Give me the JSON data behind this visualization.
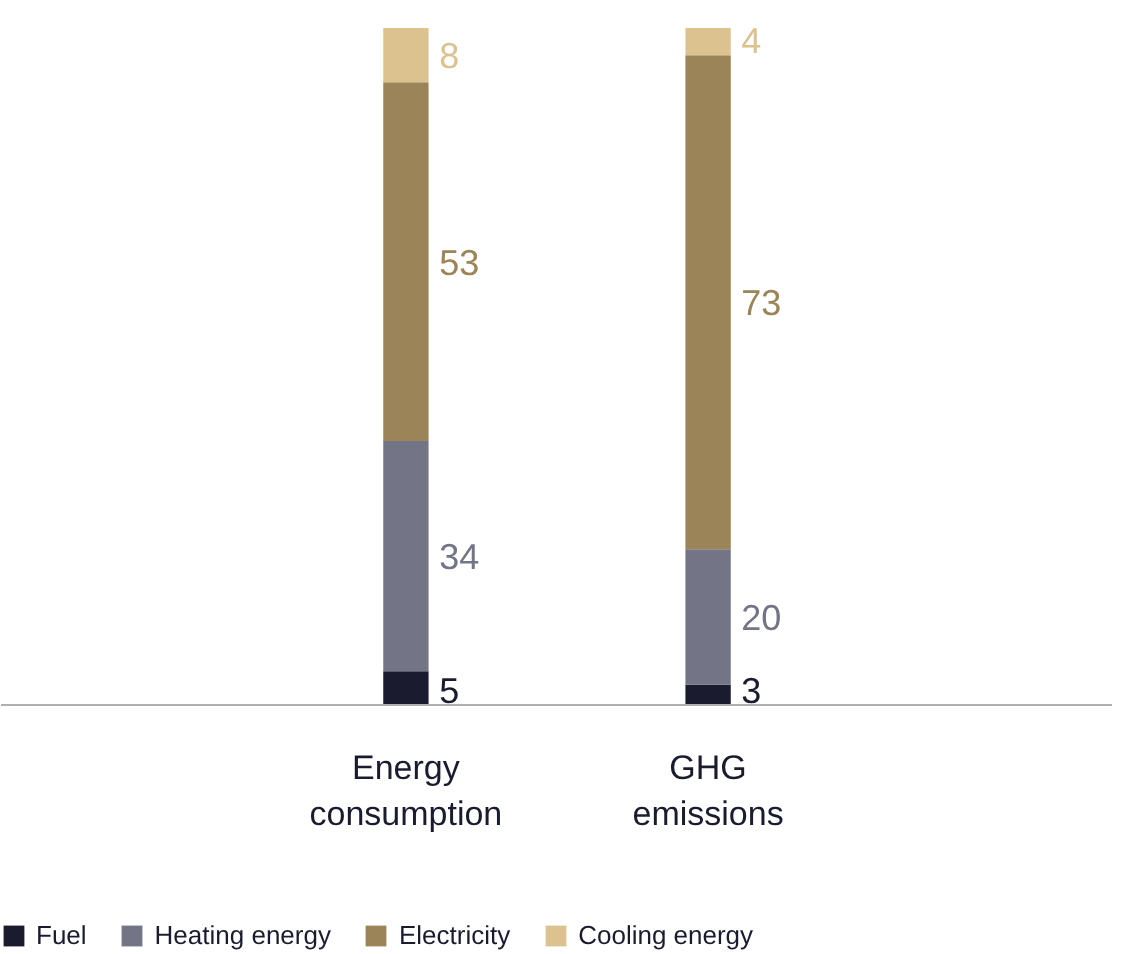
{
  "chart_data": {
    "type": "bar",
    "stacked": true,
    "data_labels": true,
    "legend": "bottom",
    "categories": [
      "Energy consumption",
      "GHG emissions"
    ],
    "series": [
      {
        "name": "Fuel",
        "color": "#1b1b30",
        "values": [
          5,
          3
        ]
      },
      {
        "name": "Heating energy",
        "color": "#737586",
        "values": [
          34,
          20
        ]
      },
      {
        "name": "Electricity",
        "color": "#9b8457",
        "values": [
          53,
          73
        ]
      },
      {
        "name": "Cooling energy",
        "color": "#dcc28e",
        "values": [
          8,
          4
        ]
      }
    ]
  }
}
